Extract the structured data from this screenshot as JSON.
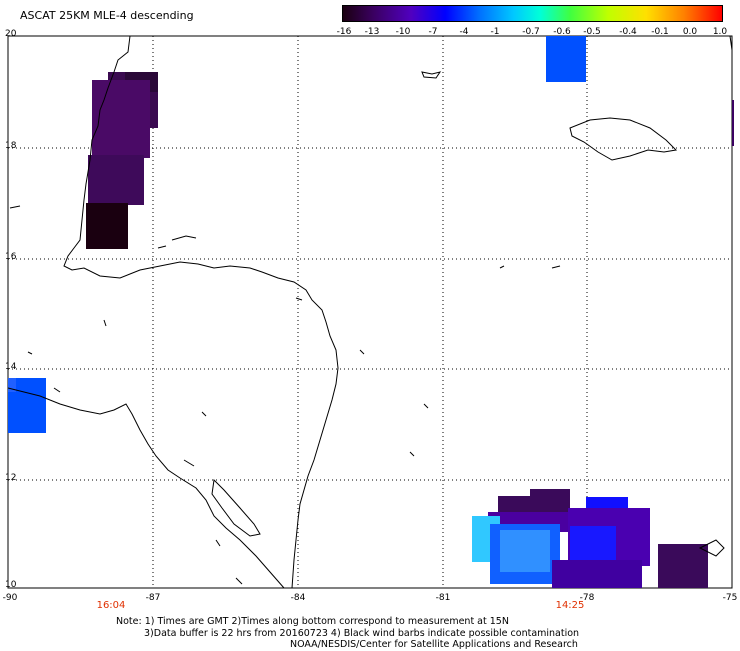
{
  "title": "ASCAT 25KM MLE-4 descending",
  "colorbar": {
    "labels": [
      "-16",
      "-13",
      "-10",
      "-7",
      "-4",
      "-1",
      "-0.7",
      "-0.6",
      "-0.5",
      "-0.4",
      "-0.1",
      "0.0",
      "1.0"
    ],
    "colors": [
      "#1a0010",
      "#3a0060",
      "#5a00c0",
      "#0000ff",
      "#0080ff",
      "#00d0ff",
      "#00ffd0",
      "#40ff40",
      "#d0ff00",
      "#ffe000",
      "#ff9000",
      "#ff4000",
      "#ff0000"
    ]
  },
  "lat_labels": [
    "20",
    "18",
    "16",
    "14",
    "12",
    "10"
  ],
  "lon_labels": [
    "-90",
    "-87",
    "-84",
    "-81",
    "-78",
    "-75"
  ],
  "times": [
    "16:04",
    "14:25"
  ],
  "notes": {
    "line1": "Note: 1) Times are GMT 2)Times along bottom correspond to measurement at 15N",
    "line2": "3)Data buffer is 22 hrs from 20160723 4) Black wind barbs indicate possible contamination",
    "line3": "NOAA/NESDIS/Center for Satellite Applications and Research"
  },
  "swath_colors": {
    "darkest": "#1a0010",
    "dark_purple": "#3a0a50",
    "purple": "#4a0080",
    "violet": "#5000c0",
    "blue": "#1010ff",
    "mid_blue": "#0050ff",
    "light_blue": "#2090ff",
    "cyan": "#20c8ff"
  }
}
